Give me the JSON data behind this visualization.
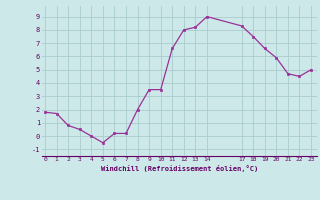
{
  "x": [
    0,
    1,
    2,
    3,
    4,
    5,
    6,
    7,
    8,
    9,
    10,
    11,
    12,
    13,
    14,
    17,
    18,
    19,
    20,
    21,
    22,
    23
  ],
  "y": [
    1.8,
    1.7,
    0.8,
    0.5,
    0.0,
    -0.5,
    0.2,
    0.2,
    2.0,
    3.5,
    3.5,
    6.6,
    8.0,
    8.2,
    9.0,
    8.3,
    7.5,
    6.6,
    5.9,
    4.7,
    4.5,
    5.0
  ],
  "line_color": "#993399",
  "marker_color": "#993399",
  "bg_color": "#cce8e8",
  "grid_color": "#aacccc",
  "xlabel": "Windchill (Refroidissement éolien,°C)",
  "xlabel_color": "#660066",
  "tick_color": "#660066",
  "ylim": [
    -1.5,
    9.8
  ],
  "yticks": [
    -1,
    0,
    1,
    2,
    3,
    4,
    5,
    6,
    7,
    8,
    9
  ],
  "xticks": [
    0,
    1,
    2,
    3,
    4,
    5,
    6,
    7,
    8,
    9,
    10,
    11,
    12,
    13,
    14,
    17,
    18,
    19,
    20,
    21,
    22,
    23
  ],
  "xlim": [
    -0.3,
    23.5
  ],
  "figsize": [
    3.2,
    2.0
  ],
  "dpi": 100
}
